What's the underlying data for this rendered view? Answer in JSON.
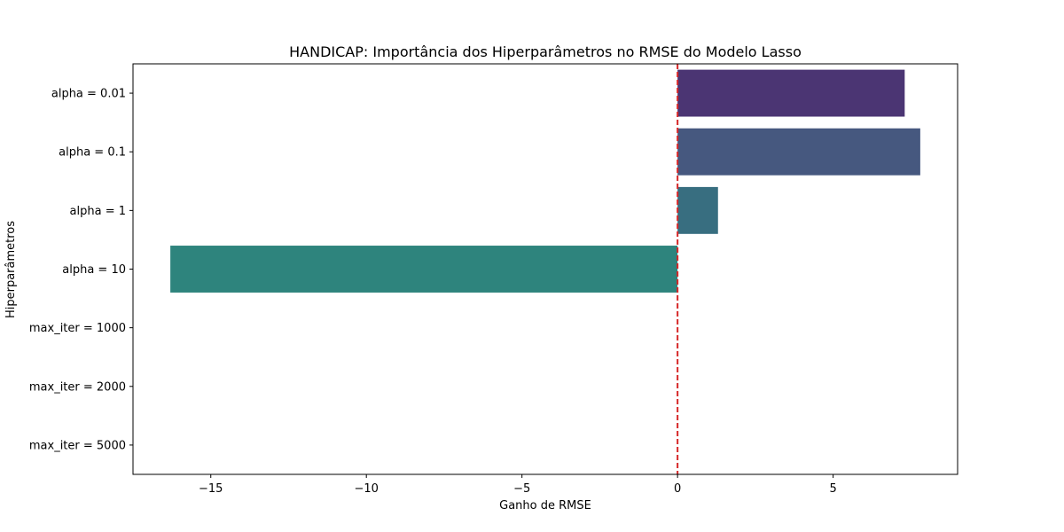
{
  "chart_data": {
    "type": "bar",
    "orientation": "horizontal",
    "title": "HANDICAP: Importância dos Hiperparâmetros no RMSE do Modelo Lasso",
    "xlabel": "Ganho de RMSE",
    "ylabel": "Hiperparâmetros",
    "categories": [
      "alpha = 0.01",
      "alpha = 0.1",
      "alpha = 1",
      "alpha = 10",
      "max_iter = 1000",
      "max_iter = 2000",
      "max_iter = 5000"
    ],
    "values": [
      7.3,
      7.8,
      1.3,
      -16.3,
      0,
      0,
      0
    ],
    "colors": [
      "#4b3573",
      "#46587f",
      "#386e80",
      "#2e847d",
      "#2e9a72",
      "#3bb161",
      "#6fc84a"
    ],
    "xlim": [
      -17.5,
      9.0
    ],
    "xticks": [
      -15,
      -10,
      -5,
      0,
      5
    ],
    "xtick_labels": [
      "−15",
      "−10",
      "−5",
      "0",
      "5"
    ],
    "reference_line": {
      "x": 0,
      "color": "#d62728",
      "style": "dashed"
    },
    "grid": false,
    "legend": "none"
  }
}
